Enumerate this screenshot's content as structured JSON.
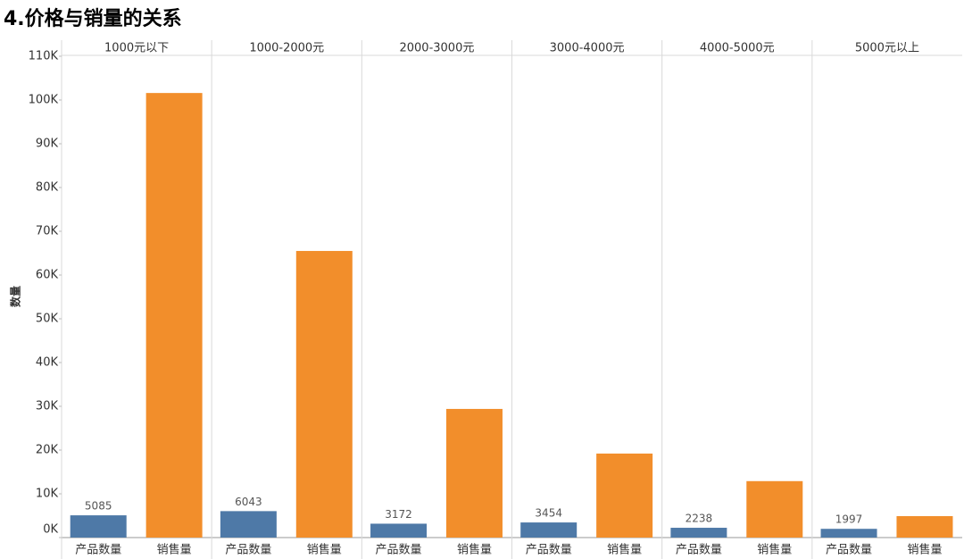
{
  "chart_data": {
    "type": "bar",
    "title": "4.价格与销量的关系",
    "y_label": "数量",
    "groups": [
      "1000元以下",
      "1000-2000元",
      "2000-3000元",
      "3000-4000元",
      "4000-5000元",
      "5000元以上"
    ],
    "series": [
      {
        "name": "产品数量",
        "color": "#4e79a7",
        "data_labels": true,
        "values": [
          5085,
          6043,
          3172,
          3454,
          2238,
          1997
        ]
      },
      {
        "name": "销售量",
        "color": "#f28e2b",
        "data_labels": false,
        "values": [
          101600,
          65500,
          29400,
          19200,
          12900,
          4900
        ]
      }
    ],
    "ylim": [
      0,
      110200
    ],
    "yticks": [
      {
        "value": 0,
        "label": "0K"
      },
      {
        "value": 10000,
        "label": "10K"
      },
      {
        "value": 20000,
        "label": "20K"
      },
      {
        "value": 30000,
        "label": "30K"
      },
      {
        "value": 40000,
        "label": "40K"
      },
      {
        "value": 50000,
        "label": "50K"
      },
      {
        "value": 60000,
        "label": "60K"
      },
      {
        "value": 70000,
        "label": "70K"
      },
      {
        "value": 80000,
        "label": "80K"
      },
      {
        "value": 90000,
        "label": "90K"
      },
      {
        "value": 100000,
        "label": "100K"
      },
      {
        "value": 110000,
        "label": "110K"
      }
    ]
  }
}
